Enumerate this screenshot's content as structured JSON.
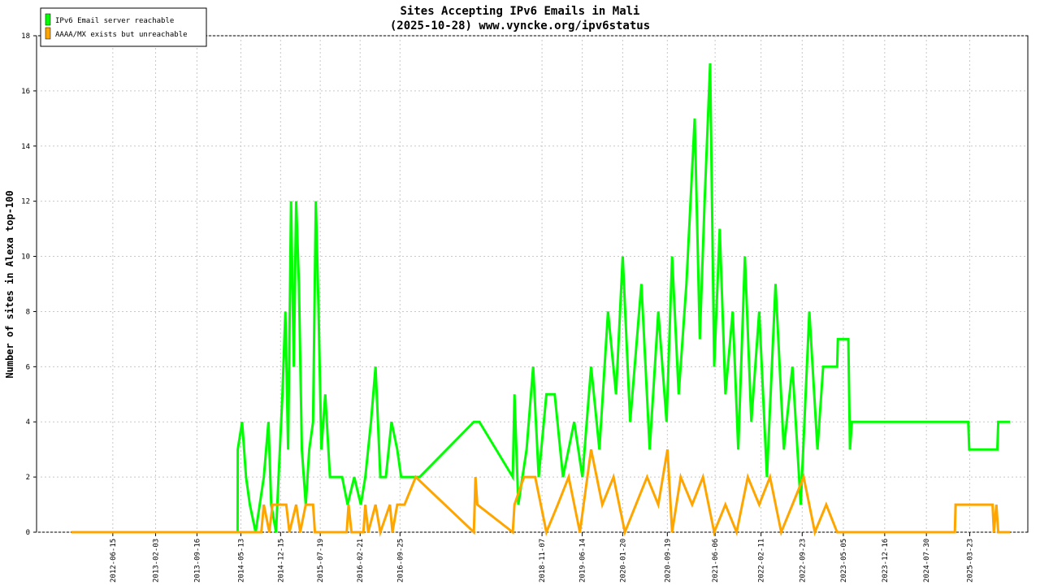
{
  "chart_data": {
    "type": "line",
    "title": "Sites Accepting IPv6 Emails in Mali",
    "subtitle": "(2025-10-28) www.vyncke.org/ipv6status",
    "y_label": "Number of sites in Alexa top-100",
    "xlim": [
      "2011-04-27",
      "2026-02-02"
    ],
    "ylim": [
      0,
      18
    ],
    "yticks": [
      0,
      2,
      4,
      6,
      8,
      10,
      12,
      14,
      16,
      18
    ],
    "xticks": [
      "2012-06-15",
      "2013-02-03",
      "2013-09-16",
      "2014-05-13",
      "2014-12-15",
      "2015-07-19",
      "2016-02-21",
      "2016-09-25",
      "2018-11-07",
      "2019-06-14",
      "2020-01-20",
      "2020-09-19",
      "2021-06-06",
      "2022-02-11",
      "2022-09-23",
      "2023-05-05",
      "2023-12-16",
      "2024-07-30",
      "2025-03-23"
    ],
    "grid": true,
    "legend": "top-left",
    "series": [
      {
        "name": "IPv6 Email server reachable",
        "color": "#00ff00",
        "x": [
          "2011-11-03",
          "2014-04-25",
          "2014-04-26",
          "2014-05-20",
          "2014-06-10",
          "2014-07-01",
          "2014-08-01",
          "2014-09-15",
          "2014-10-10",
          "2014-10-25",
          "2014-11-20",
          "2014-12-25",
          "2015-01-10",
          "2015-01-25",
          "2015-02-10",
          "2015-02-25",
          "2015-03-10",
          "2015-03-25",
          "2015-04-10",
          "2015-05-01",
          "2015-05-20",
          "2015-06-10",
          "2015-06-25",
          "2015-07-10",
          "2015-07-25",
          "2015-08-15",
          "2015-09-10",
          "2015-10-15",
          "2015-11-15",
          "2015-12-15",
          "2016-01-20",
          "2016-02-25",
          "2016-03-20",
          "2016-04-20",
          "2016-05-15",
          "2016-06-10",
          "2016-07-10",
          "2016-08-10",
          "2016-09-10",
          "2016-10-01",
          "2017-01-10",
          "2017-11-01",
          "2017-12-01",
          "2018-06-01",
          "2018-06-10",
          "2018-07-01",
          "2018-08-15",
          "2018-09-20",
          "2018-10-20",
          "2018-12-01",
          "2019-01-15",
          "2019-03-01",
          "2019-05-01",
          "2019-06-15",
          "2019-08-01",
          "2019-09-15",
          "2019-11-01",
          "2019-12-15",
          "2020-01-20",
          "2020-03-01",
          "2020-05-01",
          "2020-06-15",
          "2020-08-01",
          "2020-09-15",
          "2020-10-15",
          "2020-11-20",
          "2021-01-01",
          "2021-02-15",
          "2021-03-15",
          "2021-04-10",
          "2021-05-10",
          "2021-06-01",
          "2021-07-01",
          "2021-08-01",
          "2021-09-10",
          "2021-10-10",
          "2021-11-15",
          "2021-12-20",
          "2022-02-01",
          "2022-03-15",
          "2022-05-01",
          "2022-06-15",
          "2022-08-01",
          "2022-09-15",
          "2022-11-01",
          "2022-12-15",
          "2023-01-15",
          "2023-04-01",
          "2023-04-05",
          "2023-06-01",
          "2023-06-10",
          "2023-06-20",
          "2025-03-15",
          "2025-03-20",
          "2025-08-20",
          "2025-08-25",
          "2025-10-28"
        ],
        "values": [
          0,
          0,
          3,
          4,
          2,
          1,
          0,
          2,
          4,
          1,
          0,
          5,
          8,
          3,
          12,
          6,
          12,
          9,
          3,
          1,
          3,
          4,
          12,
          8,
          3,
          5,
          2,
          2,
          2,
          1,
          2,
          1,
          2,
          4,
          6,
          2,
          2,
          4,
          3,
          2,
          2,
          4,
          4,
          2,
          5,
          1,
          3,
          6,
          2,
          5,
          5,
          2,
          4,
          2,
          6,
          3,
          8,
          5,
          10,
          4,
          9,
          3,
          8,
          4,
          10,
          5,
          9,
          15,
          7,
          12,
          17,
          6,
          11,
          5,
          8,
          3,
          10,
          4,
          8,
          2,
          9,
          3,
          6,
          1,
          8,
          3,
          6,
          6,
          7,
          7,
          3,
          4,
          4,
          3,
          3,
          4,
          4
        ]
      },
      {
        "name": "AAAA/MX exists but unreachable",
        "color": "#ffa500",
        "x": [
          "2011-11-03",
          "2014-09-01",
          "2014-09-15",
          "2014-10-15",
          "2014-11-01",
          "2015-01-15",
          "2015-02-01",
          "2015-03-10",
          "2015-04-01",
          "2015-05-01",
          "2015-06-10",
          "2015-06-20",
          "2015-12-10",
          "2015-12-20",
          "2016-01-05",
          "2016-03-10",
          "2016-03-20",
          "2016-04-05",
          "2016-05-15",
          "2016-06-10",
          "2016-08-01",
          "2016-08-15",
          "2016-09-10",
          "2016-10-20",
          "2016-12-20",
          "2017-11-01",
          "2017-11-10",
          "2017-11-20",
          "2018-06-01",
          "2018-06-10",
          "2018-08-01",
          "2018-10-01",
          "2018-12-01",
          "2019-02-01",
          "2019-04-01",
          "2019-06-01",
          "2019-08-01",
          "2019-10-01",
          "2019-12-01",
          "2020-02-01",
          "2020-04-01",
          "2020-06-01",
          "2020-08-01",
          "2020-09-20",
          "2020-10-15",
          "2020-12-01",
          "2021-02-01",
          "2021-04-01",
          "2021-06-01",
          "2021-08-01",
          "2021-10-01",
          "2021-12-01",
          "2022-02-01",
          "2022-04-01",
          "2022-06-01",
          "2022-08-01",
          "2022-10-01",
          "2022-12-01",
          "2023-02-01",
          "2023-04-01",
          "2025-01-01",
          "2025-01-05",
          "2025-07-25",
          "2025-08-01",
          "2025-08-15",
          "2025-08-25",
          "2025-10-28"
        ],
        "values": [
          0,
          0,
          1,
          0,
          1,
          1,
          0,
          1,
          0,
          1,
          1,
          0,
          0,
          1,
          0,
          0,
          1,
          0,
          1,
          0,
          1,
          0,
          1,
          1,
          2,
          0,
          2,
          1,
          0,
          1,
          2,
          2,
          0,
          1,
          2,
          0,
          3,
          1,
          2,
          0,
          1,
          2,
          1,
          3,
          0,
          2,
          1,
          2,
          0,
          1,
          0,
          2,
          1,
          2,
          0,
          1,
          2,
          0,
          1,
          0,
          0,
          1,
          1,
          0,
          1,
          0,
          0
        ]
      }
    ]
  }
}
